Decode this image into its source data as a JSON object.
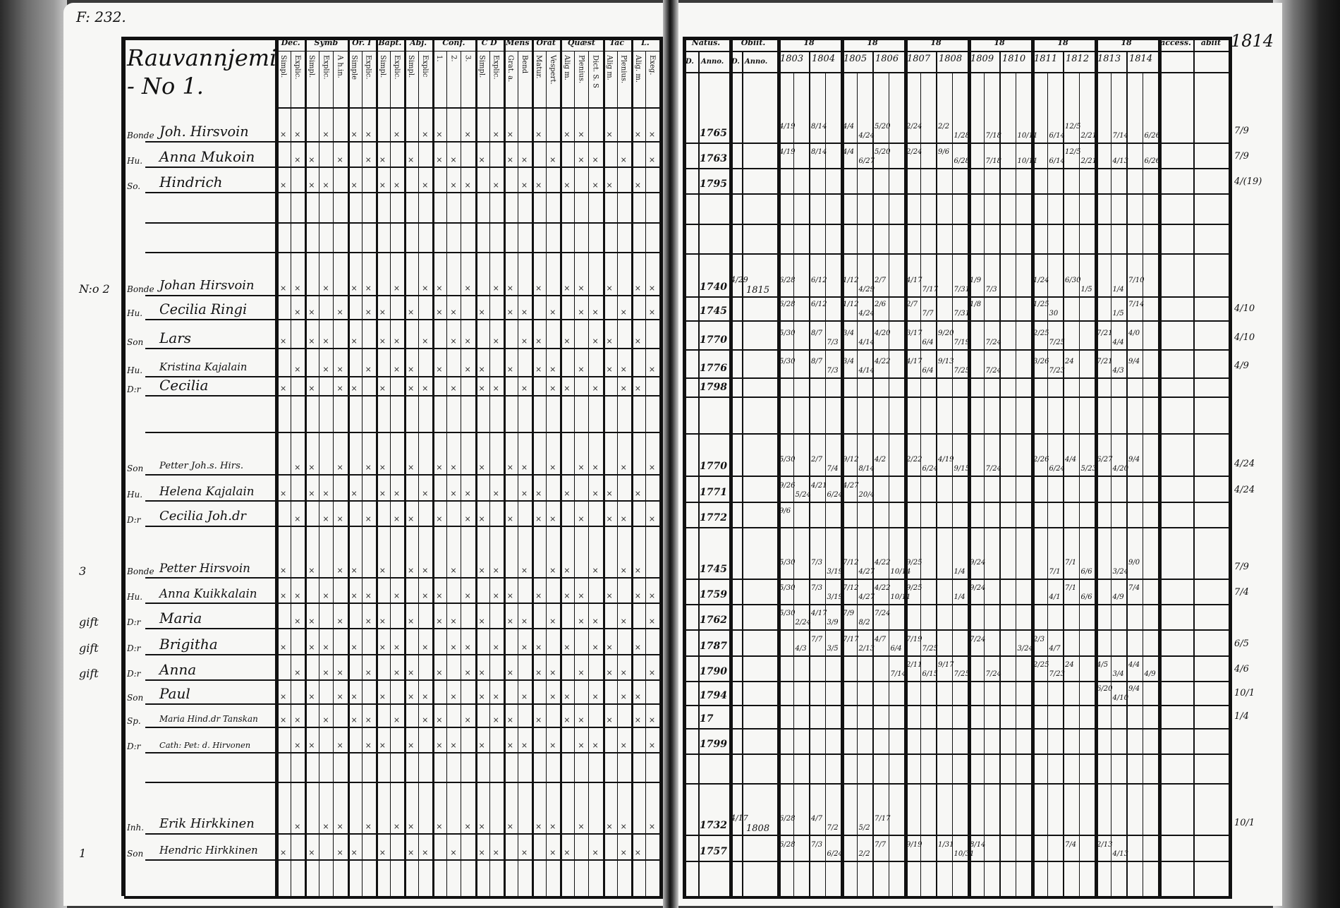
{
  "left_page": {
    "folio_note": "F: 232.",
    "village_title": "Rauvannjemi - No 1.",
    "header_groups": [
      {
        "label": "Dec.",
        "subs": [
          "Simpl.",
          "Explic."
        ]
      },
      {
        "label": "Symb",
        "subs": [
          "Simpl.",
          "Explic.",
          "A h.in."
        ]
      },
      {
        "label": "Or. I",
        "subs": [
          "Simple",
          "Explic."
        ]
      },
      {
        "label": "Bapt.",
        "subs": [
          "Simpl.",
          "Explic."
        ]
      },
      {
        "label": "Abj.",
        "subs": [
          "Simpl.",
          "Explic"
        ]
      },
      {
        "label": "Conf.",
        "subs": [
          "1.",
          "2.",
          "3."
        ]
      },
      {
        "label": "C D",
        "subs": [
          "Simpl.",
          "Explic."
        ]
      },
      {
        "label": "Mens",
        "subs": [
          "Grat. a.",
          "Bend"
        ]
      },
      {
        "label": "Orat",
        "subs": [
          "Matur.",
          "Vespert."
        ]
      },
      {
        "label": "Quæst",
        "subs": [
          "Alig m.",
          "Plenius.",
          "Dict. S. S"
        ]
      },
      {
        "label": "Tac",
        "subs": [
          "Alig m.",
          "Plenius."
        ]
      },
      {
        "label": "L.",
        "subs": [
          "Alig. m.",
          "Exeg."
        ]
      }
    ],
    "rows": [
      {
        "margin": "",
        "role": "Bonde",
        "name": "Joh. Hirsvoin",
        "marks": true
      },
      {
        "margin": "",
        "role": "Hu.",
        "name": "Anna Mukoin",
        "marks": true
      },
      {
        "margin": "",
        "role": "So.",
        "name": "Hindrich",
        "marks": true
      },
      {
        "margin": "",
        "role": "",
        "name": "",
        "marks": false
      },
      {
        "margin": "",
        "role": "",
        "name": "",
        "marks": false
      },
      {
        "margin": "N:o 2",
        "role": "Bonde",
        "name": "Johan Hirsvoin",
        "marks": true
      },
      {
        "margin": "",
        "role": "Hu.",
        "name": "Cecilia Ringi",
        "marks": true
      },
      {
        "margin": "",
        "role": "Son",
        "name": "Lars",
        "marks": true
      },
      {
        "margin": "",
        "role": "Hu.",
        "name": "Kristina Kajalain",
        "marks": true
      },
      {
        "margin": "",
        "role": "D:r",
        "name": "Cecilia",
        "marks": true
      },
      {
        "margin": "",
        "role": "",
        "name": "",
        "marks": false
      },
      {
        "margin": "",
        "role": "Son",
        "name": "Petter Joh.s. Hirs.",
        "marks": true
      },
      {
        "margin": "",
        "role": "Hu.",
        "name": "Helena Kajalain",
        "marks": true
      },
      {
        "margin": "",
        "role": "D:r",
        "name": "Cecilia Joh.dr",
        "marks": true
      },
      {
        "margin": "3",
        "role": "Bonde",
        "name": "Petter Hirsvoin",
        "marks": true
      },
      {
        "margin": "",
        "role": "Hu.",
        "name": "Anna Kuikkalain",
        "marks": true
      },
      {
        "margin": "gift",
        "role": "D:r",
        "name": "Maria",
        "marks": true
      },
      {
        "margin": "gift",
        "role": "D:r",
        "name": "Brigitha",
        "marks": true
      },
      {
        "margin": "gift",
        "role": "D:r",
        "name": "Anna",
        "marks": true
      },
      {
        "margin": "",
        "role": "Son",
        "name": "Paul",
        "marks": true
      },
      {
        "margin": "",
        "role": "Sp.",
        "name": "Maria Hind.dr Tanskan",
        "marks": true
      },
      {
        "margin": "",
        "role": "D:r",
        "name": "Cath: Pet: d. Hirvonen",
        "marks": true
      },
      {
        "margin": "",
        "role": "",
        "name": "",
        "marks": false
      },
      {
        "margin": "",
        "role": "Inh.",
        "name": "Erik Hirkkinen",
        "marks": true
      },
      {
        "margin": "1",
        "role": "Son",
        "name": "Hendric Hirkkinen",
        "marks": true
      }
    ]
  },
  "right_page": {
    "page_note": "1814",
    "header": {
      "natus": "Natus.",
      "obiit": "Obiit.",
      "day": "D.",
      "anno": "Anno.",
      "year_groups": [
        "18",
        "18",
        "18",
        "18",
        "18",
        "18"
      ],
      "years": [
        "1803",
        "1804",
        "1805",
        "1806",
        "1807",
        "1808",
        "1809",
        "1810",
        "1811",
        "1812",
        "1813",
        "1814"
      ],
      "accessit": "access.",
      "abiit": "abiit"
    },
    "rows": [
      {
        "born": "1765",
        "died_day": "",
        "died_year": "",
        "communion": [
          "4/19",
          null,
          "8/14",
          null,
          "4/4",
          "4/24",
          "5/20",
          null,
          "2/24",
          null,
          "2/2",
          "1/28",
          null,
          "7/18",
          null,
          "10/11",
          null,
          "6/14",
          "12/5",
          "2/21",
          null,
          "7/14",
          null,
          "6/26"
        ],
        "moves": "7/9"
      },
      {
        "born": "1763",
        "died_day": "",
        "died_year": "",
        "communion": [
          "4/19",
          null,
          "8/14",
          null,
          "4/4",
          "6/27",
          "5/20",
          null,
          "2/24",
          null,
          "9/6",
          "6/28",
          null,
          "7/18",
          null,
          "10/11",
          null,
          "6/14",
          "12/5",
          "2/21",
          null,
          "4/13",
          null,
          "6/26"
        ],
        "moves": "7/9"
      },
      {
        "born": "1795",
        "died_day": "",
        "died_year": "",
        "communion": [],
        "moves": "4/(19)"
      },
      {
        "born": "",
        "died_day": "",
        "died_year": "",
        "communion": [],
        "moves": ""
      },
      {
        "born": "",
        "died_day": "",
        "died_year": "",
        "communion": [],
        "moves": ""
      },
      {
        "born": "1740",
        "died_day": "4/29",
        "died_year": "1815",
        "communion": [
          "6/28",
          null,
          "6/12",
          null,
          "1/12",
          "4/29",
          "2/7",
          null,
          "4/17",
          "7/17",
          null,
          "7/31",
          "1/9",
          "7/3",
          null,
          null,
          "1/24",
          null,
          "6/30",
          "1/5",
          null,
          "1/4",
          "7/10",
          null
        ],
        "moves": ""
      },
      {
        "born": "1745",
        "died_day": "",
        "died_year": "",
        "communion": [
          "6/28",
          null,
          "6/12",
          null,
          "1/12",
          "4/24",
          "2/6",
          null,
          "2/7",
          "7/7",
          null,
          "7/31",
          "1/8",
          null,
          null,
          null,
          "1/25",
          "30",
          null,
          null,
          null,
          "1/5",
          "7/14",
          null
        ],
        "moves": "4/10"
      },
      {
        "born": "1770",
        "died_day": "",
        "died_year": "",
        "communion": [
          "5/30",
          null,
          "8/7",
          "7/3",
          "3/4",
          "4/14",
          "4/20",
          null,
          "3/17",
          "6/4",
          "9/20",
          "7/19",
          null,
          "7/24",
          null,
          null,
          "2/25",
          "7/25",
          null,
          null,
          "7/21",
          "4/4",
          "4/0",
          null
        ],
        "moves": "4/10"
      },
      {
        "born": "1776",
        "died_day": "",
        "died_year": "",
        "communion": [
          "5/30",
          null,
          "8/7",
          "7/3",
          "3/4",
          "4/14",
          "4/22",
          null,
          "4/17",
          "6/4",
          "9/13",
          "7/25",
          null,
          "7/24",
          null,
          null,
          "3/26",
          "7/23",
          "24",
          null,
          "7/21",
          "4/3",
          "9/4",
          null
        ],
        "moves": "4/9"
      },
      {
        "born": "1798",
        "died_day": "",
        "died_year": "",
        "communion": [],
        "moves": ""
      },
      {
        "born": "",
        "died_day": "",
        "died_year": "",
        "communion": [],
        "moves": ""
      },
      {
        "born": "1770",
        "died_day": "",
        "died_year": "",
        "communion": [
          "5/30",
          null,
          "2/7",
          "7/4",
          "9/12",
          "8/14",
          "4/2",
          null,
          "2/22",
          "6/24",
          "4/19",
          "9/15",
          null,
          "7/24",
          null,
          null,
          "2/26",
          "6/24",
          "4/4",
          "5/23",
          "6/27",
          "4/20",
          "9/4",
          null
        ],
        "moves": "4/24"
      },
      {
        "born": "1771",
        "died_day": "",
        "died_year": "",
        "communion": [
          "9/26",
          "5/24",
          "4/21",
          "6/24",
          "4/27",
          "20/4",
          null,
          null,
          null,
          null,
          null,
          null,
          null,
          null,
          null,
          null,
          null,
          null,
          null,
          null,
          null,
          null,
          null,
          null
        ],
        "moves": "4/24"
      },
      {
        "born": "1772",
        "died_day": "",
        "died_year": "",
        "communion": [
          "9/6"
        ],
        "moves": ""
      },
      {
        "born": "1745",
        "died_day": "",
        "died_year": "",
        "communion": [
          "5/30",
          null,
          "7/3",
          "3/19",
          "7/12",
          "4/27",
          "4/22",
          "10/14",
          "9/25",
          null,
          null,
          "1/4",
          "9/24",
          null,
          null,
          null,
          null,
          "7/1",
          "7/1",
          "6/6",
          null,
          "3/24",
          "9/0",
          null
        ],
        "moves": "7/9"
      },
      {
        "born": "1759",
        "died_day": "",
        "died_year": "",
        "communion": [
          "5/30",
          null,
          "7/3",
          "3/19",
          "7/12",
          "4/27",
          "4/22",
          "10/11",
          "9/25",
          null,
          null,
          "1/4",
          "9/24",
          null,
          null,
          null,
          null,
          "4/1",
          "7/1",
          "6/6",
          null,
          "4/9",
          "7/4",
          null
        ],
        "moves": "7/4"
      },
      {
        "born": "1762",
        "died_day": "",
        "died_year": "",
        "communion": [
          "5/30",
          "2/24",
          "4/17",
          "3/9",
          "7/9",
          "8/2",
          "7/24",
          null,
          null,
          null,
          null,
          null,
          null,
          null,
          null,
          null,
          null,
          null,
          null,
          null,
          null,
          null,
          null,
          null
        ],
        "moves": ""
      },
      {
        "born": "1787",
        "died_day": "",
        "died_year": "",
        "communion": [
          null,
          "4/3",
          "7/7",
          "3/5",
          "7/17",
          "2/13",
          "4/7",
          "6/4",
          "7/19",
          "7/25",
          null,
          null,
          "7/24",
          null,
          null,
          "3/24",
          "2/3",
          "4/7",
          null,
          null,
          null,
          null,
          null,
          null
        ],
        "moves": "6/5"
      },
      {
        "born": "1790",
        "died_day": "",
        "died_year": "",
        "communion": [
          null,
          null,
          null,
          null,
          null,
          null,
          null,
          "7/14",
          "2/11",
          "6/15",
          "9/17",
          "7/25",
          null,
          "7/24",
          null,
          null,
          "2/25",
          "7/23",
          "24",
          null,
          "4/5",
          "3/4",
          "4/4",
          "4/9"
        ],
        "moves": "4/6"
      },
      {
        "born": "1794",
        "died_day": "",
        "died_year": "",
        "communion": [
          null,
          null,
          null,
          null,
          null,
          null,
          null,
          null,
          null,
          null,
          null,
          null,
          null,
          null,
          null,
          null,
          null,
          null,
          null,
          null,
          "6/20",
          "4/10",
          "9/4",
          null
        ],
        "moves": "10/1"
      },
      {
        "born": "17",
        "died_day": "",
        "died_year": "",
        "communion": [],
        "moves": "1/4"
      },
      {
        "born": "1799",
        "died_day": "",
        "died_year": "",
        "communion": [],
        "moves": ""
      },
      {
        "born": "",
        "died_day": "",
        "died_year": "",
        "communion": [],
        "moves": ""
      },
      {
        "born": "1732",
        "died_day": "4/17",
        "died_year": "1808",
        "communion": [
          "6/28",
          null,
          "4/7",
          "7/2",
          null,
          "5/2",
          "7/17",
          null,
          null,
          null,
          null,
          null,
          null,
          null,
          null,
          null,
          null,
          null,
          null,
          null,
          null,
          null,
          null,
          null
        ],
        "moves": "10/1"
      },
      {
        "born": "1757",
        "died_day": "",
        "died_year": "",
        "communion": [
          "6/28",
          null,
          "7/3",
          "6/24",
          null,
          "2/2",
          "7/7",
          null,
          "9/19",
          null,
          "1/31",
          "10/31",
          "8/14",
          null,
          null,
          null,
          null,
          null,
          "7/4",
          null,
          "2/13",
          "4/13",
          null,
          null
        ],
        "moves": ""
      }
    ]
  }
}
